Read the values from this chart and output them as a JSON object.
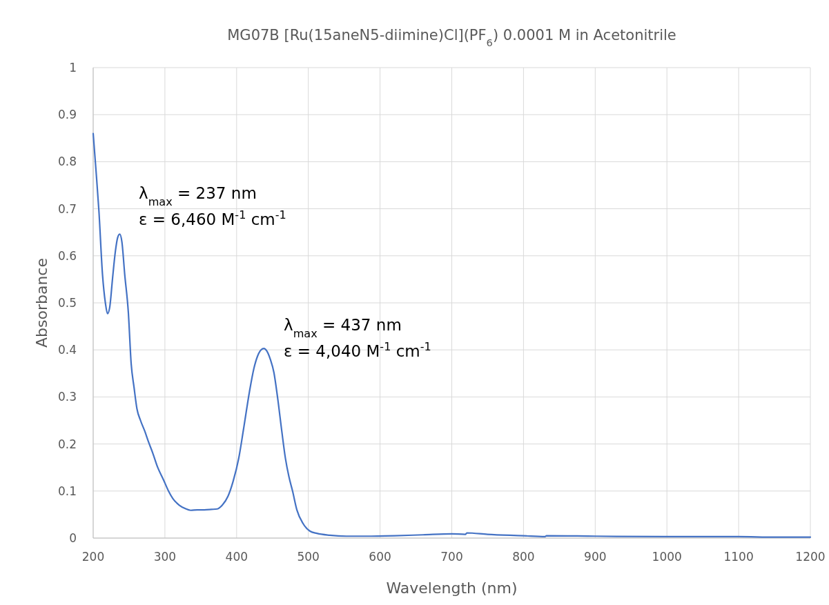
{
  "chart_data": {
    "type": "line",
    "title": "MG07B [Ru(15aneN5-diimine)Cl](PF$_{6}$) 0.0001 M in Acetonitrile",
    "xlabel": "Wavelength (nm)",
    "ylabel": "Absorbance",
    "xlim": [
      200,
      1200
    ],
    "xticks": [
      200,
      300,
      400,
      500,
      600,
      700,
      800,
      900,
      1000,
      1100,
      1200
    ],
    "ylim": [
      0,
      1
    ],
    "yticks": [
      0,
      0.1,
      0.2,
      0.3,
      0.4,
      0.5,
      0.6,
      0.7,
      0.8,
      0.9,
      1
    ],
    "grid": true,
    "annotations": [
      "λ$_{max}$ = 237 nm",
      "ε = 6,460 M$^{-1}$ cm$^{-1}$",
      "λ$_{max}$ = 437 nm",
      "ε = 4,040 M$^{-1}$ cm$^{-1}$"
    ],
    "series": [
      {
        "color": "#4472c4",
        "x": [
          200,
          204,
          208,
          213,
          217,
          220,
          223,
          227,
          231,
          234,
          237,
          240,
          244,
          249,
          253,
          257,
          261,
          266,
          272,
          277,
          283,
          290,
          298,
          305,
          311,
          320,
          328,
          336,
          345,
          355,
          365,
          373,
          380,
          388,
          395,
          403,
          410,
          418,
          424,
          429,
          434,
          438,
          442,
          447,
          452,
          457,
          463,
          468,
          473,
          478,
          484,
          493,
          502,
          512,
          530,
          553,
          580,
          620,
          660,
          700,
          719,
          721,
          750,
          800,
          830,
          832,
          900,
          1000,
          1100,
          1150,
          1200
        ],
        "values": [
          0.86,
          0.78,
          0.695,
          0.56,
          0.5,
          0.477,
          0.49,
          0.552,
          0.61,
          0.638,
          0.646,
          0.63,
          0.56,
          0.48,
          0.37,
          0.32,
          0.275,
          0.25,
          0.227,
          0.205,
          0.181,
          0.15,
          0.124,
          0.1,
          0.084,
          0.07,
          0.063,
          0.059,
          0.06,
          0.06,
          0.061,
          0.062,
          0.07,
          0.089,
          0.12,
          0.17,
          0.235,
          0.312,
          0.36,
          0.386,
          0.4,
          0.403,
          0.398,
          0.38,
          0.352,
          0.3,
          0.227,
          0.17,
          0.13,
          0.1,
          0.06,
          0.03,
          0.015,
          0.01,
          0.006,
          0.004,
          0.004,
          0.005,
          0.007,
          0.009,
          0.008,
          0.011,
          0.008,
          0.005,
          0.003,
          0.005,
          0.004,
          0.003,
          0.003,
          0.002,
          0.002
        ]
      }
    ]
  }
}
